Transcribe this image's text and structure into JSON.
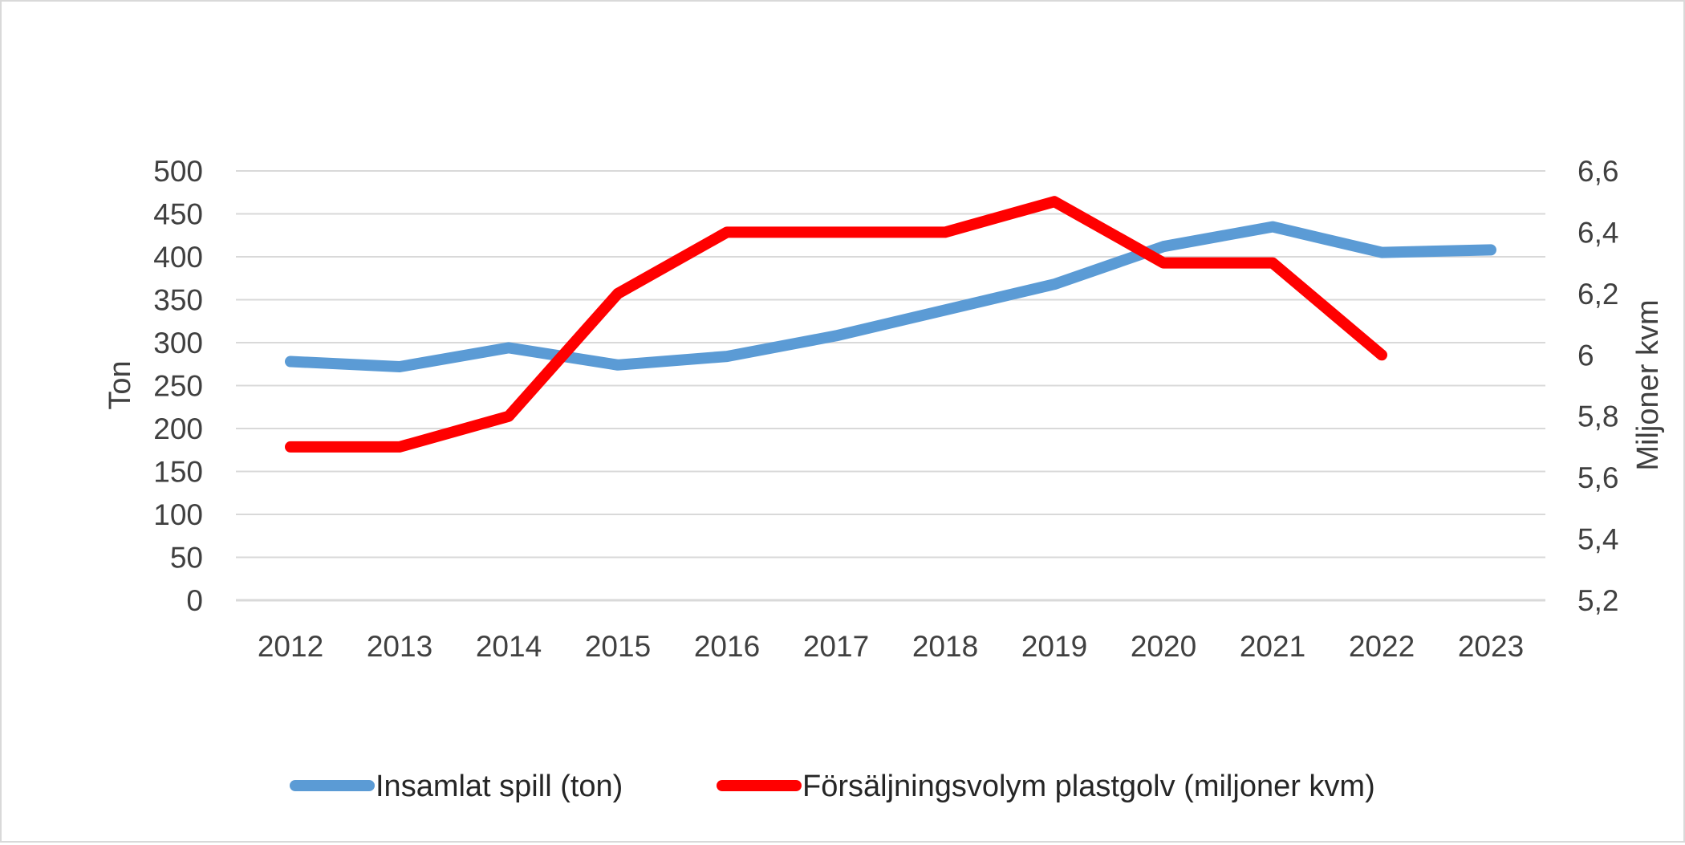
{
  "chart_data": {
    "type": "line",
    "title": "",
    "categories": [
      "2012",
      "2013",
      "2014",
      "2015",
      "2016",
      "2017",
      "2018",
      "2019",
      "2020",
      "2021",
      "2022",
      "2023"
    ],
    "y_left": {
      "label": "Ton",
      "ylim": [
        0,
        500
      ],
      "ticks": [
        0,
        50,
        100,
        150,
        200,
        250,
        300,
        350,
        400,
        450,
        500
      ],
      "tick_labels": [
        "0",
        "50",
        "100",
        "150",
        "200",
        "250",
        "300",
        "350",
        "400",
        "450",
        "500"
      ]
    },
    "y_right": {
      "label": "Miljoner kvm",
      "ylim": [
        5.2,
        6.6
      ],
      "ticks": [
        5.2,
        5.4,
        5.6,
        5.8,
        6.0,
        6.2,
        6.4,
        6.6
      ],
      "tick_labels": [
        "5,2",
        "5,4",
        "5,6",
        "5,8",
        "6",
        "6,2",
        "6,4",
        "6,6"
      ]
    },
    "grid": true,
    "legend_position": "bottom",
    "series": [
      {
        "name": "Insamlat spill (ton)",
        "axis": "left",
        "color": "#5b9bd5",
        "values": [
          278,
          272,
          294,
          274,
          284,
          308,
          338,
          368,
          412,
          435,
          405,
          408
        ]
      },
      {
        "name": "Försäljningsvolym plastgolv (miljoner kvm)",
        "axis": "right",
        "color": "#ff0000",
        "values": [
          5.7,
          5.7,
          5.8,
          6.2,
          6.4,
          6.4,
          6.4,
          6.5,
          6.3,
          6.3,
          6.0,
          null
        ]
      }
    ]
  }
}
